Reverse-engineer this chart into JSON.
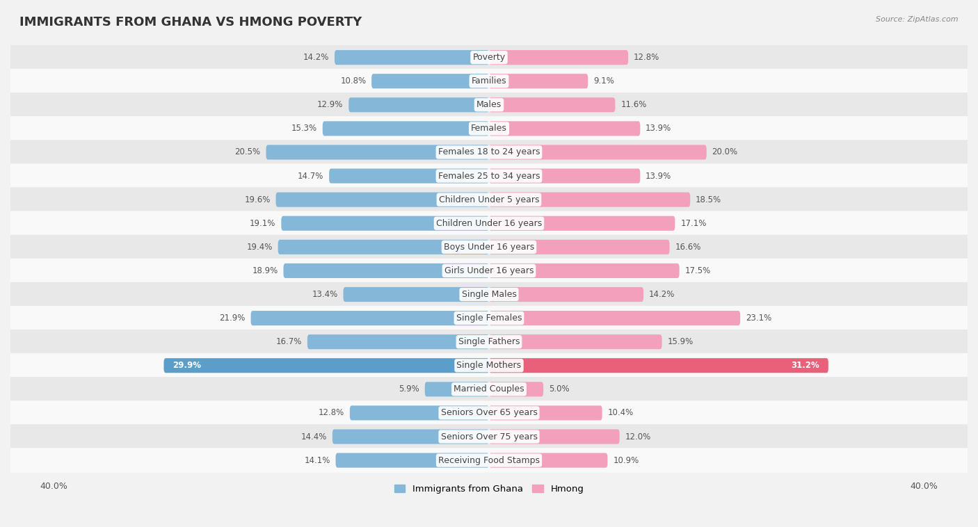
{
  "title": "IMMIGRANTS FROM GHANA VS HMONG POVERTY",
  "source": "Source: ZipAtlas.com",
  "categories": [
    "Poverty",
    "Families",
    "Males",
    "Females",
    "Females 18 to 24 years",
    "Females 25 to 34 years",
    "Children Under 5 years",
    "Children Under 16 years",
    "Boys Under 16 years",
    "Girls Under 16 years",
    "Single Males",
    "Single Females",
    "Single Fathers",
    "Single Mothers",
    "Married Couples",
    "Seniors Over 65 years",
    "Seniors Over 75 years",
    "Receiving Food Stamps"
  ],
  "ghana_values": [
    14.2,
    10.8,
    12.9,
    15.3,
    20.5,
    14.7,
    19.6,
    19.1,
    19.4,
    18.9,
    13.4,
    21.9,
    16.7,
    29.9,
    5.9,
    12.8,
    14.4,
    14.1
  ],
  "hmong_values": [
    12.8,
    9.1,
    11.6,
    13.9,
    20.0,
    13.9,
    18.5,
    17.1,
    16.6,
    17.5,
    14.2,
    23.1,
    15.9,
    31.2,
    5.0,
    10.4,
    12.0,
    10.9
  ],
  "ghana_color": "#85b8d8",
  "hmong_color": "#f2a0bc",
  "ghana_highlight_color": "#5b9ec9",
  "hmong_highlight_color": "#e8607a",
  "highlight_rows": [
    13
  ],
  "background_color": "#f2f2f2",
  "row_bg_light": "#f9f9f9",
  "row_bg_dark": "#e8e8e8",
  "axis_limit": 40.0,
  "legend_ghana": "Immigrants from Ghana",
  "legend_hmong": "Hmong",
  "title_fontsize": 13,
  "label_fontsize": 9,
  "value_fontsize": 8.5,
  "bar_height": 0.62
}
